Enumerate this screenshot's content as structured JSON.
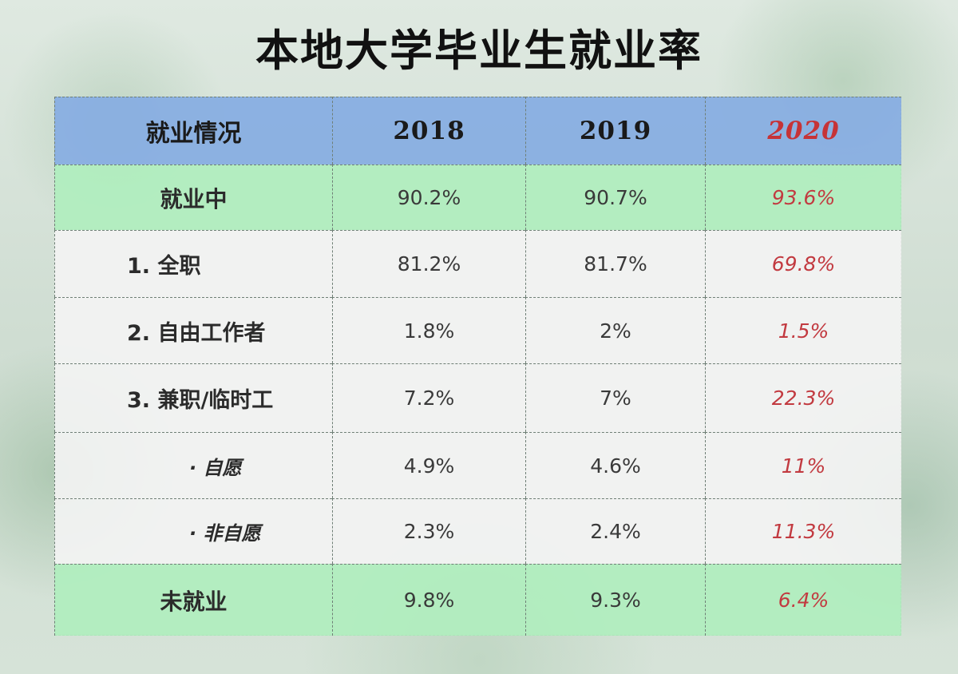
{
  "title": "本地大学毕业生就业率",
  "colors": {
    "header_bg": "#88aee2",
    "green_row_bg": "#b0eebe",
    "white_row_bg": "#f4f4f4",
    "highlight_text": "#c23a40"
  },
  "table": {
    "header": [
      "就业情况",
      "2018",
      "2019",
      "2020"
    ],
    "rows": [
      {
        "label": "就业中",
        "values": [
          "90.2%",
          "90.7%",
          "93.6%"
        ]
      },
      {
        "label": "1. 全职",
        "values": [
          "81.2%",
          "81.7%",
          "69.8%"
        ]
      },
      {
        "label": "2. 自由工作者",
        "values": [
          "1.8%",
          "2%",
          "1.5%"
        ]
      },
      {
        "label": "3. 兼职/临时工",
        "values": [
          "7.2%",
          "7%",
          "22.3%"
        ]
      },
      {
        "label": "· 自愿",
        "values": [
          "4.9%",
          "4.6%",
          "11%"
        ]
      },
      {
        "label": "· 非自愿",
        "values": [
          "2.3%",
          "2.4%",
          "11.3%"
        ]
      },
      {
        "label": "未就业",
        "values": [
          "9.8%",
          "9.3%",
          "6.4%"
        ]
      }
    ]
  }
}
